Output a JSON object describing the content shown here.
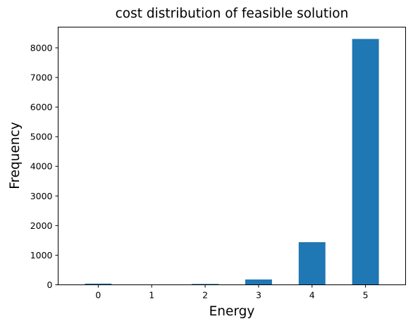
{
  "chart_data": {
    "type": "bar",
    "title": "cost distribution of feasible solution",
    "xlabel": "Energy",
    "ylabel": "Frequency",
    "categories": [
      "0",
      "1",
      "2",
      "3",
      "4",
      "5"
    ],
    "values": [
      40,
      0,
      30,
      180,
      1440,
      8300
    ],
    "ylim": [
      0,
      8700
    ],
    "yticks": [
      0,
      1000,
      2000,
      3000,
      4000,
      5000,
      6000,
      7000,
      8000
    ],
    "grid": false,
    "color": "#1f77b4"
  }
}
